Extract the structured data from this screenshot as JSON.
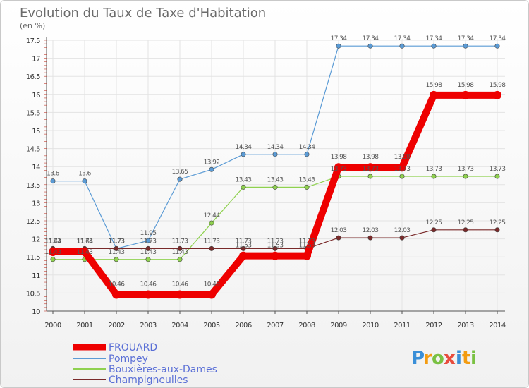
{
  "chart_data": {
    "type": "line",
    "title": "Evolution du Taux de Taxe d'Habitation",
    "subtitle": "(en %)",
    "x": [
      "2000",
      "2001",
      "2002",
      "2003",
      "2004",
      "2005",
      "2006",
      "2007",
      "2008",
      "2009",
      "2010",
      "2011",
      "2012",
      "2013",
      "2014"
    ],
    "y_ticks": [
      "10",
      "10.5",
      "11",
      "11.5",
      "12",
      "12.5",
      "13",
      "13.5",
      "14",
      "14.5",
      "15",
      "15.5",
      "16",
      "16.5",
      "17",
      "17.5"
    ],
    "ylim": [
      10,
      17.5
    ],
    "grid": true,
    "legend_position": "bottom-left",
    "series": [
      {
        "name": "Pompey",
        "color": "#5b9bd5",
        "values": [
          13.6,
          13.6,
          11.73,
          11.95,
          13.65,
          13.92,
          14.34,
          14.34,
          14.34,
          17.34,
          17.34,
          17.34,
          17.34,
          17.34,
          17.34
        ],
        "labels": [
          "13.6",
          "13.6",
          "11.73",
          "11.95",
          "13.65",
          "13.92",
          "14.34",
          "14.34",
          "14.34",
          "17.34",
          "17.34",
          "17.34",
          "17.34",
          "17.34",
          "17.34"
        ]
      },
      {
        "name": "Bouxières-aux-Dames",
        "color": "#8fd14f",
        "values": [
          11.43,
          11.43,
          11.43,
          11.43,
          11.43,
          12.44,
          13.43,
          13.43,
          13.43,
          13.73,
          13.73,
          13.73,
          13.73,
          13.73,
          13.73
        ],
        "labels": [
          "11.43",
          "11.43",
          "11.43",
          "11.43",
          "11.43",
          "12.44",
          "13.43",
          "13.43",
          "13.43",
          "13.73",
          "13.73",
          "13.73",
          "13.73",
          "13.73",
          "13.73"
        ]
      },
      {
        "name": "Champigneulles",
        "color": "#7a2a2a",
        "values": [
          11.73,
          11.73,
          11.73,
          11.73,
          11.73,
          11.73,
          11.73,
          11.73,
          11.73,
          12.03,
          12.03,
          12.03,
          12.25,
          12.25,
          12.25
        ],
        "labels": [
          "11.73",
          "11.73",
          "11.73",
          "11.73",
          "11.73",
          "11.73",
          "11.73",
          "11.73",
          "11.73",
          "12.03",
          "12.03",
          "12.03",
          "12.25",
          "12.25",
          "12.25"
        ]
      },
      {
        "name": "FROUARD",
        "color": "#ee0000",
        "values": [
          11.64,
          11.64,
          10.46,
          10.46,
          10.46,
          10.46,
          11.53,
          11.53,
          11.53,
          13.98,
          13.98,
          13.98,
          15.98,
          15.98,
          15.98
        ],
        "labels": [
          "11.64",
          "11.64",
          "10.46",
          "10.46",
          "10.46",
          "10.46",
          "11.53",
          "11.53",
          "11.53",
          "13.98",
          "13.98",
          "13.98",
          "15.98",
          "15.98",
          "15.98"
        ]
      }
    ],
    "legend": [
      {
        "name": "FROUARD",
        "color": "#ee0000",
        "thick": true
      },
      {
        "name": "Pompey",
        "color": "#5b9bd5",
        "thick": false
      },
      {
        "name": "Bouxières-aux-Dames",
        "color": "#8fd14f",
        "thick": false
      },
      {
        "name": "Champigneulles",
        "color": "#7a2a2a",
        "thick": false
      }
    ]
  },
  "logo": {
    "letters": [
      {
        "ch": "P",
        "color": "#3a8fd8"
      },
      {
        "ch": "r",
        "color": "#f39c12"
      },
      {
        "ch": "o",
        "color": "#7ac143"
      },
      {
        "ch": "x",
        "color": "#e84c3d"
      },
      {
        "ch": "i",
        "color": "#3a8fd8"
      },
      {
        "ch": "t",
        "color": "#f39c12"
      },
      {
        "ch": "i",
        "color": "#7ac143"
      }
    ]
  }
}
